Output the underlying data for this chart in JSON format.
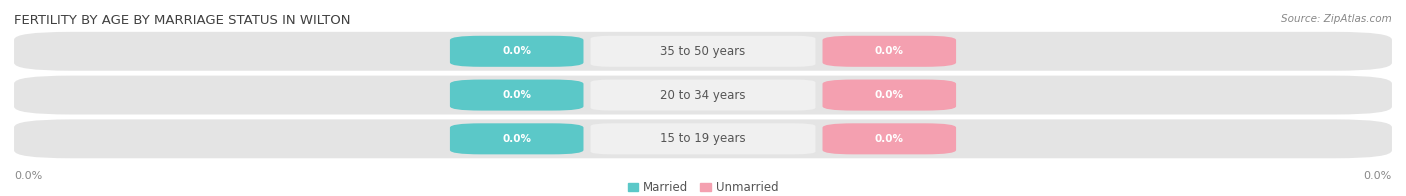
{
  "title": "FERTILITY BY AGE BY MARRIAGE STATUS IN WILTON",
  "source": "Source: ZipAtlas.com",
  "age_groups": [
    "15 to 19 years",
    "20 to 34 years",
    "35 to 50 years"
  ],
  "married_color": "#5bc8c8",
  "unmarried_color": "#f4a0b0",
  "bar_bg_color": "#e4e4e4",
  "center_bg_color": "#f8f8f8",
  "title_fontsize": 9.5,
  "source_fontsize": 7.5,
  "label_fontsize": 8.5,
  "value_fontsize": 7.5,
  "legend_fontsize": 8.5,
  "axis_tick_fontsize": 8,
  "value_label": "0.0%",
  "axis_left_label": "0.0%",
  "axis_right_label": "0.0%",
  "background_color": "#ffffff",
  "title_color": "#404040",
  "source_color": "#888888",
  "tick_color": "#888888",
  "label_color": "#555555"
}
